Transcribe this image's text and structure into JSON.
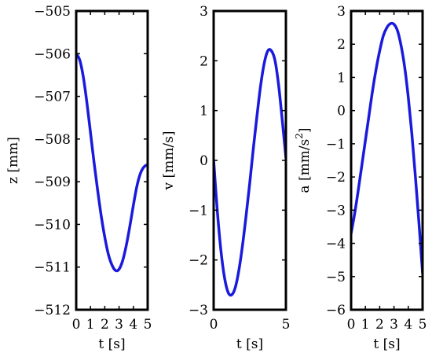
{
  "chart_data": [
    {
      "type": "line",
      "xlabel": "t [s]",
      "ylabel": "z [mm]",
      "ylabel_sup": "",
      "xlim": [
        0,
        5
      ],
      "ylim": [
        -512,
        -505
      ],
      "xticks": [
        "0",
        "1",
        "2",
        "3",
        "4",
        "5"
      ],
      "yticks": [
        "−505",
        "−506",
        "−507",
        "−508",
        "−509",
        "−510",
        "−511",
        "−512"
      ],
      "color": "#1a1adc",
      "series": [
        {
          "x": [
            0,
            0.25,
            0.5,
            0.75,
            1,
            1.25,
            1.5,
            1.75,
            2,
            2.25,
            2.5,
            2.75,
            3,
            3.25,
            3.5,
            3.75,
            4,
            4.25,
            4.5,
            4.75,
            5
          ],
          "values": [
            -506.0,
            -506.15,
            -506.55,
            -507.15,
            -507.85,
            -508.55,
            -509.2,
            -509.8,
            -510.3,
            -510.7,
            -510.95,
            -511.08,
            -511.05,
            -510.85,
            -510.5,
            -510.05,
            -509.55,
            -509.1,
            -508.8,
            -508.65,
            -508.6
          ]
        }
      ]
    },
    {
      "type": "line",
      "xlabel": "t [s]",
      "ylabel": "v [mm/s]",
      "ylabel_sup": "",
      "xlim": [
        0,
        5
      ],
      "ylim": [
        -3,
        3
      ],
      "xticks": [
        "0",
        "5"
      ],
      "yticks": [
        "3",
        "2",
        "1",
        "0",
        "−1",
        "−2",
        "−3"
      ],
      "color": "#1a1adc",
      "series": [
        {
          "x": [
            0,
            0.25,
            0.5,
            0.75,
            1,
            1.25,
            1.5,
            1.75,
            2,
            2.25,
            2.5,
            2.75,
            3,
            3.25,
            3.5,
            3.75,
            4,
            4.25,
            4.5,
            4.75,
            5
          ],
          "values": [
            0,
            -1.0,
            -1.8,
            -2.35,
            -2.65,
            -2.7,
            -2.55,
            -2.2,
            -1.7,
            -1.1,
            -0.45,
            0.25,
            0.9,
            1.5,
            1.95,
            2.2,
            2.2,
            2.0,
            1.5,
            0.8,
            0.05
          ]
        }
      ]
    },
    {
      "type": "line",
      "xlabel": "t [s]",
      "ylabel": "a [mm/s",
      "ylabel_sup": "2",
      "ylabel_end": "]",
      "xlim": [
        0,
        5
      ],
      "ylim": [
        -6,
        3
      ],
      "xticks": [
        "0",
        "1",
        "2",
        "3",
        "4",
        "5"
      ],
      "yticks": [
        "3",
        "2",
        "1",
        "0",
        "−1",
        "−2",
        "−3",
        "−4",
        "−5",
        "−6"
      ],
      "color": "#1a1adc",
      "series": [
        {
          "x": [
            0,
            0.25,
            0.5,
            0.75,
            1,
            1.25,
            1.5,
            1.75,
            2,
            2.25,
            2.5,
            2.75,
            3,
            3.25,
            3.5,
            3.75,
            4,
            4.25,
            4.5,
            4.75,
            5
          ],
          "values": [
            -3.7,
            -3.1,
            -2.4,
            -1.65,
            -0.9,
            -0.15,
            0.6,
            1.25,
            1.8,
            2.25,
            2.5,
            2.62,
            2.6,
            2.4,
            1.95,
            1.3,
            0.4,
            -0.7,
            -2.0,
            -3.4,
            -4.9
          ]
        }
      ]
    }
  ]
}
